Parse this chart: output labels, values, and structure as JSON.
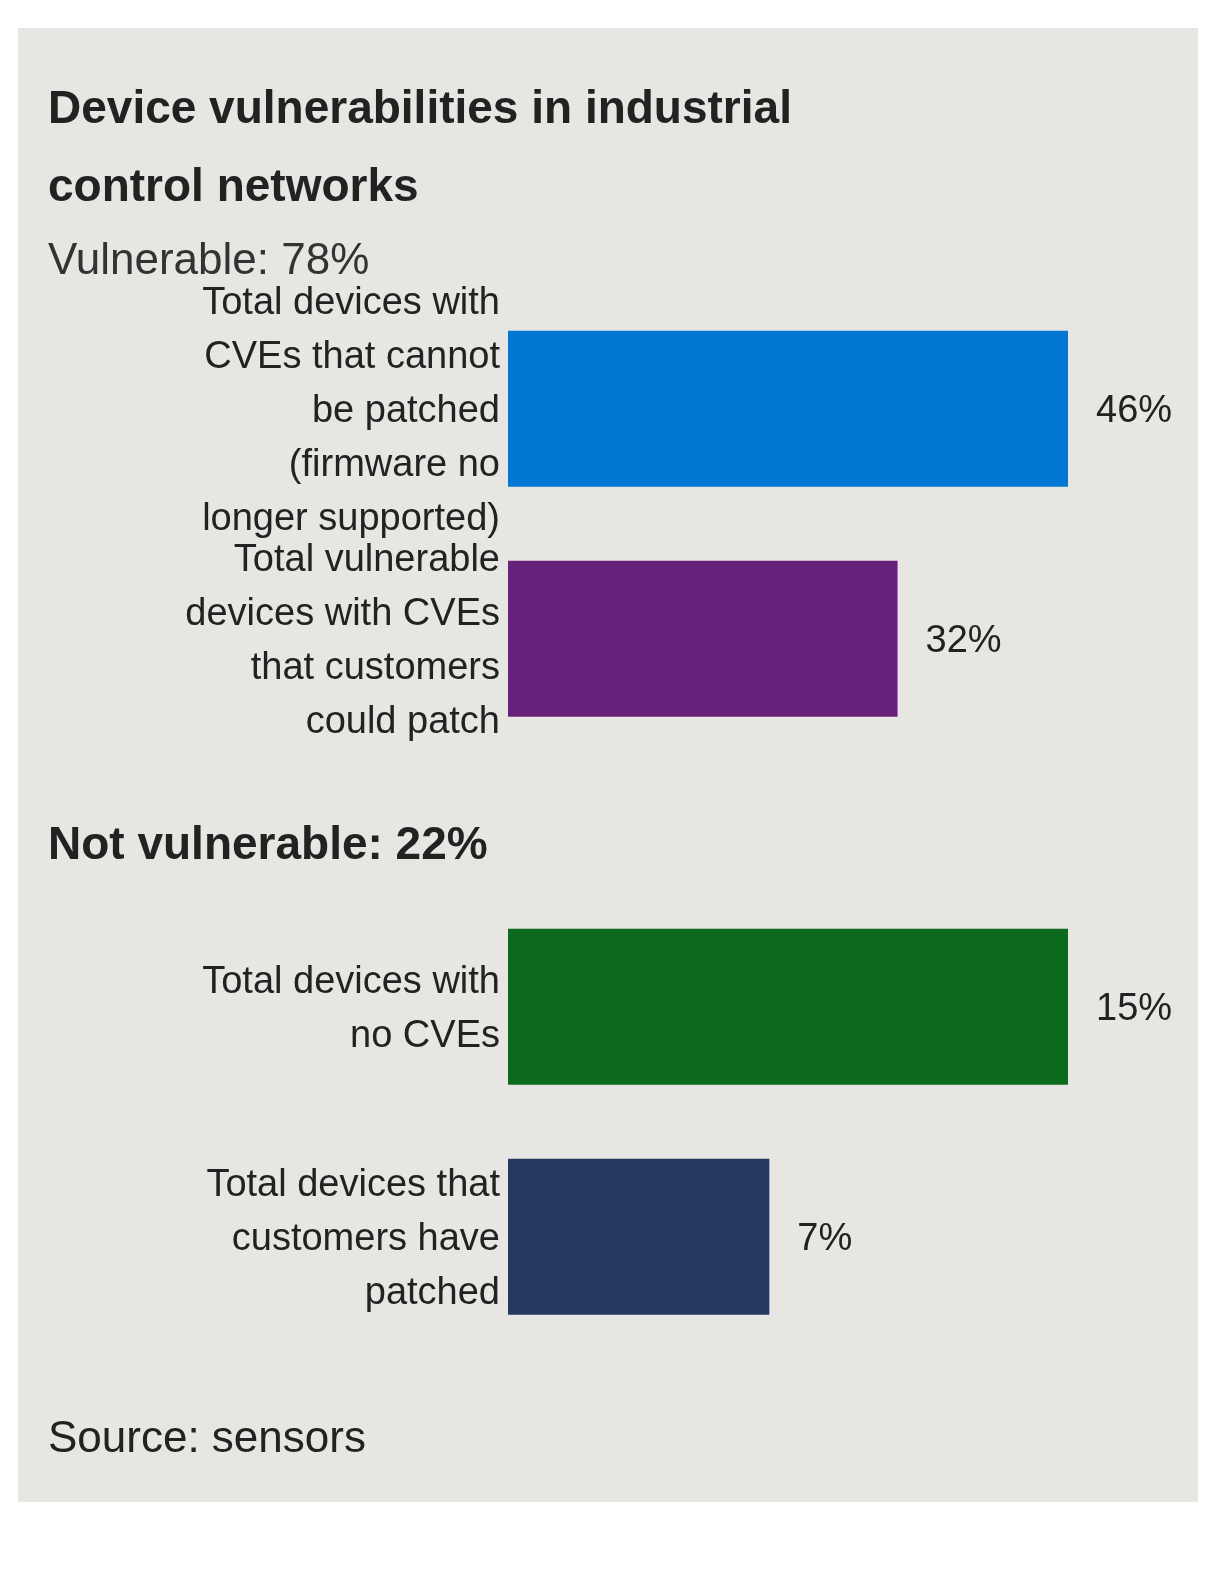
{
  "chart_data": [
    {
      "type": "bar",
      "orientation": "horizontal",
      "title": "Device vulnerabilities in industrial control networks",
      "subtitle": "Vulnerable: 78%",
      "categories": [
        "Total devices with CVEs that cannot be patched (firmware no longer supported)",
        "Total vulnerable devices with CVEs that customers could patch"
      ],
      "values": [
        46,
        32
      ],
      "colors": [
        "#0078d4",
        "#68217a"
      ],
      "value_labels": [
        "46%",
        "32%"
      ],
      "grid": false,
      "legend": false,
      "tick_labels": "y"
    },
    {
      "type": "bar",
      "orientation": "horizontal",
      "title": "Not vulnerable: 22%",
      "categories": [
        "Total devices with no CVEs",
        "Total devices that customers have patched"
      ],
      "values": [
        15,
        7
      ],
      "colors": [
        "#0b6a1e",
        "#243a5e"
      ],
      "value_labels": [
        "15%",
        "7%"
      ],
      "grid": false,
      "legend": false,
      "tick_labels": "y",
      "annotations": [
        "Source: sensors"
      ]
    }
  ]
}
